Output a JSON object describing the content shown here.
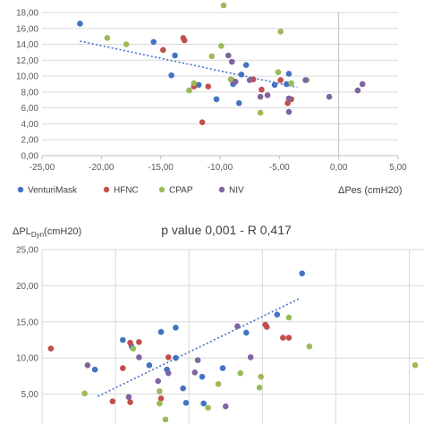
{
  "colors": {
    "VenturiMask": "#4472C4",
    "HFNC": "#C0504D",
    "CPAP": "#9BBB59",
    "NIV": "#8064A2",
    "trend": "#4472C4",
    "grid": "#D9D9D9",
    "axis": "#BFBFBF"
  },
  "chart_data": [
    {
      "type": "scatter",
      "title": "",
      "xlabel": "ΔPes (cmH20)",
      "ylabel": "",
      "xlim": [
        -25,
        5
      ],
      "ylim": [
        0,
        18
      ],
      "xticks": [
        "-25,00",
        "-20,00",
        "-15,00",
        "-10,00",
        "-5,00",
        "0,00",
        "5,00"
      ],
      "yticks": [
        "0,00",
        "2,00",
        "4,00",
        "6,00",
        "8,00",
        "10,00",
        "12,00",
        "14,00",
        "16,00",
        "18,00"
      ],
      "grid": "horizontal",
      "legend_position": "bottom",
      "trendline": {
        "x": [
          -21.8,
          -3.5
        ],
        "y": [
          14.4,
          8.6
        ]
      },
      "series": [
        {
          "name": "VenturiMask",
          "points": [
            [
              -21.8,
              16.6
            ],
            [
              -15.6,
              14.3
            ],
            [
              -14.1,
              10.1
            ],
            [
              -13.8,
              12.6
            ],
            [
              -11.8,
              8.9
            ],
            [
              -8.9,
              9.0
            ],
            [
              -8.2,
              10.2
            ],
            [
              -7.8,
              11.4
            ],
            [
              -8.4,
              6.6
            ],
            [
              -5.4,
              8.9
            ],
            [
              -4.4,
              9.0
            ],
            [
              -4.2,
              10.3
            ],
            [
              -10.3,
              7.1
            ]
          ]
        },
        {
          "name": "HFNC",
          "points": [
            [
              -14.8,
              13.3
            ],
            [
              -13.1,
              14.8
            ],
            [
              -13.0,
              14.5
            ],
            [
              -12.2,
              8.7
            ],
            [
              -11.5,
              4.2
            ],
            [
              -11.0,
              8.7
            ],
            [
              -9.0,
              9.5
            ],
            [
              -7.2,
              9.6
            ],
            [
              -6.5,
              8.3
            ],
            [
              -4.0,
              7.1
            ],
            [
              -4.3,
              6.6
            ],
            [
              -4.9,
              9.5
            ]
          ]
        },
        {
          "name": "CPAP",
          "points": [
            [
              -19.5,
              14.8
            ],
            [
              -17.9,
              14.0
            ],
            [
              -12.6,
              8.2
            ],
            [
              -12.2,
              9.1
            ],
            [
              -10.7,
              12.5
            ],
            [
              -9.9,
              13.8
            ],
            [
              -9.7,
              18.9
            ],
            [
              -9.1,
              9.6
            ],
            [
              -6.6,
              5.4
            ],
            [
              -5.1,
              10.5
            ],
            [
              -4.9,
              15.6
            ],
            [
              -4.0,
              9.1
            ],
            [
              -2.7,
              9.5
            ]
          ]
        },
        {
          "name": "NIV",
          "points": [
            [
              -9.3,
              12.6
            ],
            [
              -9.0,
              11.8
            ],
            [
              -8.7,
              9.3
            ],
            [
              -7.5,
              9.5
            ],
            [
              -6.6,
              7.4
            ],
            [
              -6.0,
              7.6
            ],
            [
              -4.2,
              5.5
            ],
            [
              -0.8,
              7.4
            ],
            [
              1.6,
              8.2
            ],
            [
              2.0,
              9.0
            ],
            [
              -2.8,
              9.5
            ],
            [
              -4.2,
              7.2
            ]
          ]
        }
      ]
    },
    {
      "type": "scatter",
      "title": "p value 0,001 - R 0,417",
      "xlabel": "",
      "ylabel_main": "ΔPL",
      "ylabel_sub": "Dyn",
      "ylabel_unit": "(cmH20)",
      "xlim": [
        0,
        2.6
      ],
      "ylim": [
        0,
        25
      ],
      "yticks": [
        "5,00",
        "10,00",
        "15,00",
        "20,00",
        "25,00"
      ],
      "grid": "both",
      "trendline": {
        "x": [
          0.38,
          1.76
        ],
        "y": [
          4.7,
          18.3
        ]
      },
      "series": [
        {
          "name": "VenturiMask",
          "points": [
            [
              1.77,
              21.7
            ],
            [
              1.6,
              16.0
            ],
            [
              1.39,
              13.5
            ],
            [
              1.23,
              8.6
            ],
            [
              0.91,
              14.2
            ],
            [
              0.81,
              13.6
            ],
            [
              0.91,
              10.0
            ],
            [
              1.09,
              7.4
            ],
            [
              0.55,
              12.5
            ],
            [
              0.61,
              11.6
            ],
            [
              0.73,
              9.0
            ],
            [
              0.85,
              8.4
            ],
            [
              0.36,
              8.4
            ],
            [
              0.96,
              5.8
            ],
            [
              0.98,
              3.8
            ],
            [
              1.1,
              3.7
            ]
          ]
        },
        {
          "name": "HFNC",
          "points": [
            [
              0.06,
              11.3
            ],
            [
              0.6,
              12.1
            ],
            [
              0.66,
              12.2
            ],
            [
              0.55,
              8.6
            ],
            [
              0.48,
              4.0
            ],
            [
              0.86,
              10.1
            ],
            [
              1.52,
              14.6
            ],
            [
              1.53,
              14.3
            ],
            [
              1.64,
              12.8
            ],
            [
              1.68,
              12.8
            ],
            [
              0.6,
              3.9
            ],
            [
              0.81,
              4.4
            ]
          ]
        },
        {
          "name": "CPAP",
          "points": [
            [
              0.29,
              5.1
            ],
            [
              0.62,
              11.3
            ],
            [
              0.8,
              5.4
            ],
            [
              0.8,
              3.7
            ],
            [
              0.84,
              1.5
            ],
            [
              1.13,
              3.1
            ],
            [
              1.35,
              7.9
            ],
            [
              1.48,
              5.9
            ],
            [
              1.68,
              15.6
            ],
            [
              1.82,
              11.6
            ],
            [
              2.54,
              9.0
            ],
            [
              1.2,
              6.4
            ],
            [
              1.49,
              7.4
            ]
          ]
        },
        {
          "name": "NIV",
          "points": [
            [
              0.31,
              9.0
            ],
            [
              0.59,
              4.6
            ],
            [
              0.66,
              10.1
            ],
            [
              0.79,
              6.8
            ],
            [
              0.86,
              7.9
            ],
            [
              1.04,
              8.0
            ],
            [
              1.06,
              9.7
            ],
            [
              1.33,
              14.4
            ],
            [
              1.42,
              10.1
            ],
            [
              1.25,
              3.3
            ]
          ]
        }
      ]
    }
  ]
}
